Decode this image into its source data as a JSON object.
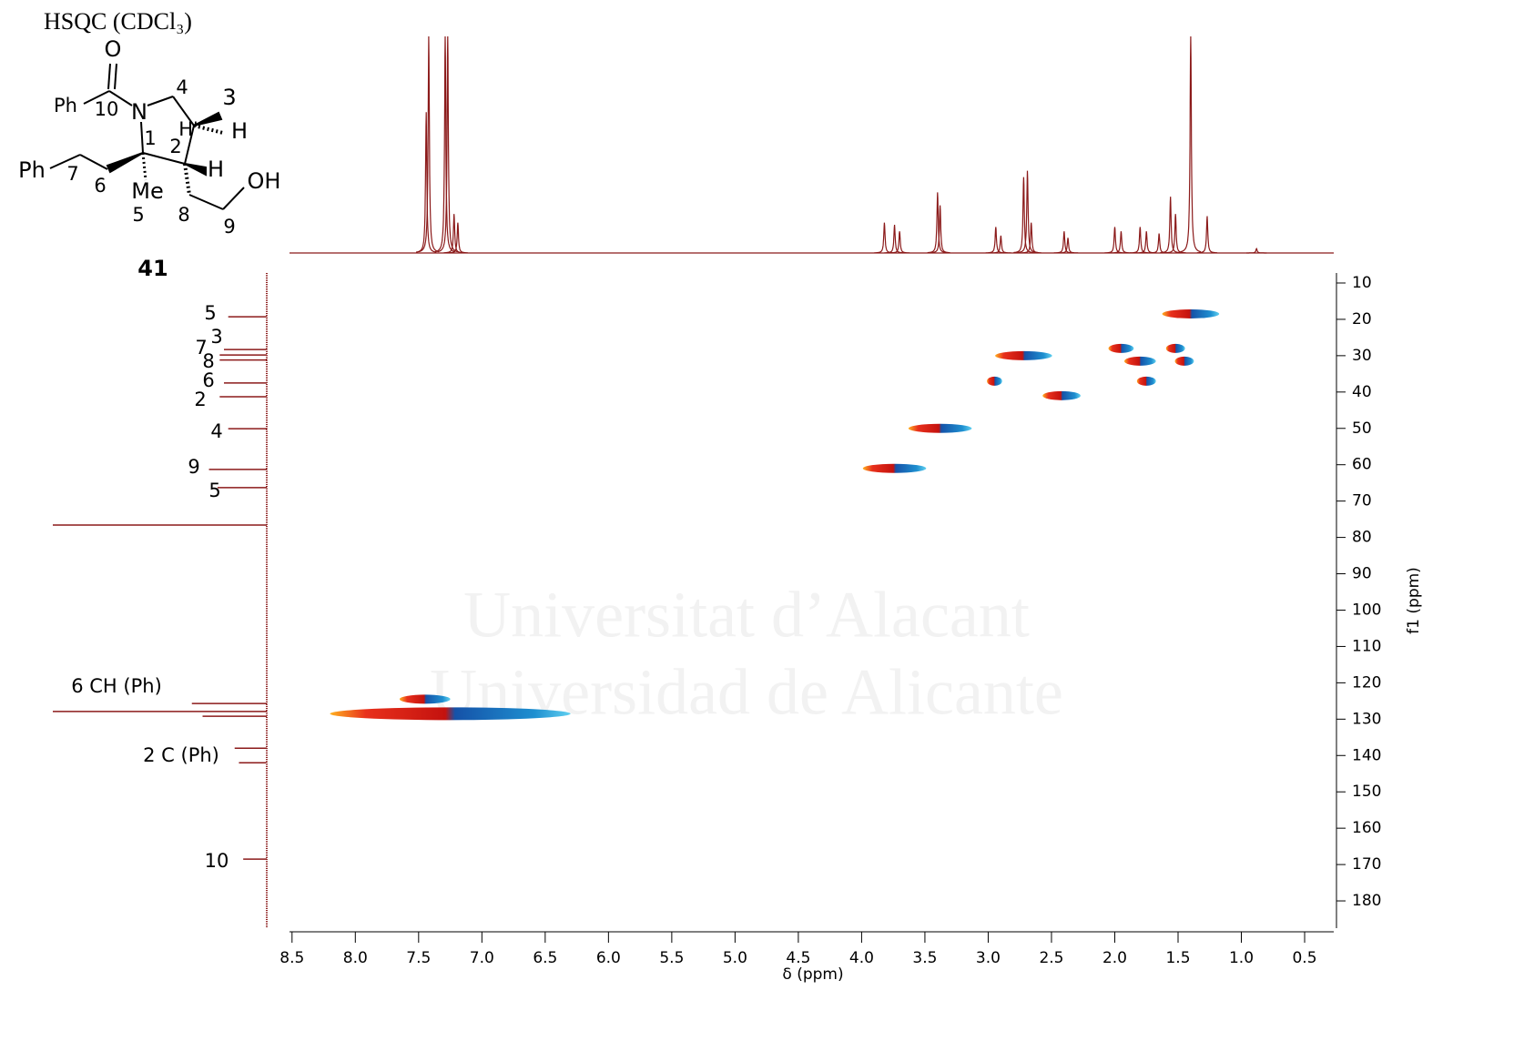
{
  "header": {
    "title": "HSQC (CDCl₃)"
  },
  "structure": {
    "compound": "41",
    "labels": [
      "O",
      "Ph",
      "10",
      "N",
      "4",
      "H'",
      "3",
      "H",
      "2",
      "1",
      "H",
      "OH",
      "Ph",
      "7",
      "6",
      "Me",
      "5",
      "8",
      "9"
    ]
  },
  "watermark": [
    "Universitat d’Alacant",
    "Universidad de Alicante"
  ],
  "chart_data": {
    "type": "hsqc",
    "x_label": "δ (ppm)",
    "y_label": "f1 (ppm)",
    "xlim": [
      8.52,
      0.27
    ],
    "xticks": [
      8.5,
      {
        "value": 8,
        "label": "8.0"
      },
      7.5,
      {
        "value": 7,
        "label": "7.0"
      },
      6.5,
      {
        "value": 6,
        "label": "6.0"
      },
      5.5,
      {
        "value": 5,
        "label": "5.0"
      },
      4.5,
      {
        "value": 4,
        "label": "4.0"
      },
      3.5,
      {
        "value": 3,
        "label": "3.0"
      },
      2.5,
      {
        "value": 2,
        "label": "2.0"
      },
      1.5,
      {
        "value": 1,
        "label": "1.0"
      },
      0.5
    ],
    "ylim": [
      7.25,
      187.5
    ],
    "yticks": [
      10,
      20,
      30,
      40,
      50,
      60,
      70,
      80,
      90,
      100,
      110,
      120,
      130,
      140,
      150,
      160,
      170,
      180
    ],
    "color": "#8b1a1a",
    "cross_peaks": {
      "x": [
        1.4,
        1.95,
        1.52,
        2.72,
        1.8,
        1.45,
        1.75,
        2.95,
        2.42,
        3.38,
        3.74,
        7.25,
        7.45
      ],
      "y": [
        18.5,
        28,
        28,
        30,
        31.5,
        31.5,
        37,
        37,
        41,
        50,
        61,
        128.5,
        124.5
      ],
      "x_spread": [
        0.45,
        0.2,
        0.15,
        0.45,
        0.25,
        0.15,
        0.15,
        0.12,
        0.3,
        0.5,
        0.5,
        1.9,
        0.4
      ]
    },
    "proton_spectrum": {
      "hlim": [
        0,
        100
      ],
      "x": [
        7.44,
        7.42,
        7.29,
        7.27,
        7.22,
        7.19,
        3.82,
        3.74,
        3.7,
        3.4,
        3.38,
        2.94,
        2.9,
        2.72,
        2.69,
        2.66,
        2.4,
        2.37,
        2.0,
        1.95,
        1.8,
        1.75,
        1.65,
        1.56,
        1.52,
        1.4,
        1.27,
        0.88
      ],
      "heights": [
        65,
        100,
        100,
        100,
        18,
        14,
        14,
        13,
        10,
        28,
        22,
        12,
        8,
        35,
        38,
        14,
        10,
        7,
        12,
        10,
        12,
        10,
        9,
        26,
        18,
        100,
        17,
        2
      ]
    },
    "carbon_spectrum": {
      "ilim": [
        0,
        100
      ],
      "shifts": [
        19.3,
        28.3,
        29.8,
        31.2,
        37.5,
        41.3,
        50.1,
        61.3,
        66.3,
        76.6,
        125.7,
        127.9,
        129.2,
        138,
        142,
        168.5
      ],
      "intensities": [
        18,
        20,
        22,
        22,
        20,
        22,
        18,
        27,
        23,
        100,
        35,
        100,
        30,
        15,
        13,
        11
      ],
      "labels": [
        "5",
        "3",
        "7",
        "8",
        "6",
        "2",
        "4",
        "9",
        "5",
        "6 CH (Ph)",
        "2 C (Ph)",
        "10"
      ]
    }
  }
}
